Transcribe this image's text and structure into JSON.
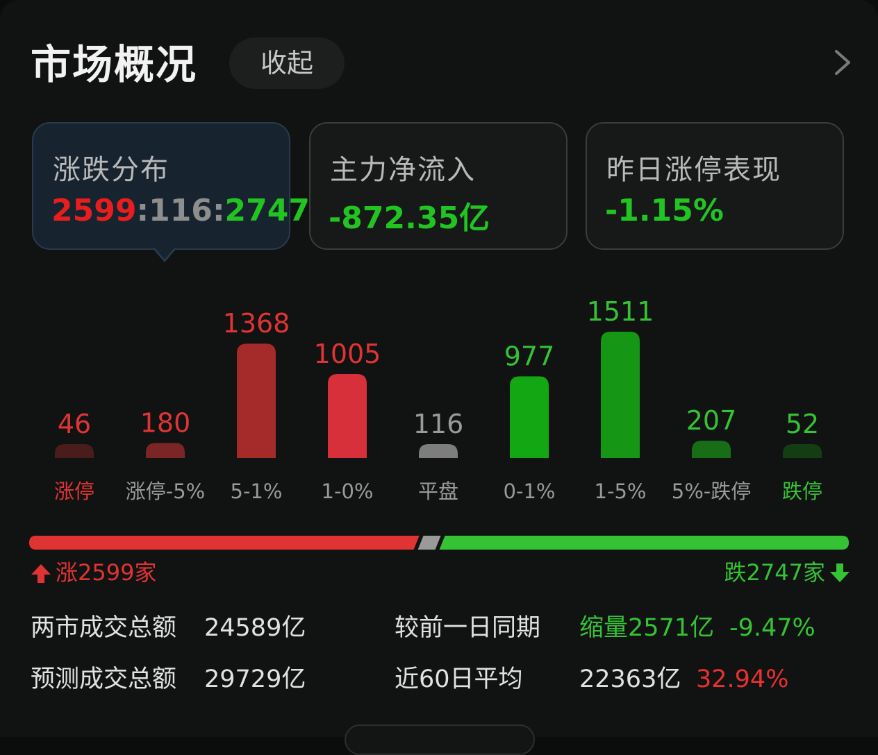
{
  "header": {
    "title": "市场概况",
    "collapse_label": "收起"
  },
  "cards": [
    {
      "title": "涨跌分布",
      "up": "2599",
      "flat": "116",
      "down": "2747"
    },
    {
      "title": "主力净流入",
      "value": "-872.35亿"
    },
    {
      "title": "昨日涨停表现",
      "value": "-1.15%"
    }
  ],
  "colors": {
    "up": "#e03434",
    "down": "#35c235",
    "flat": "#9a9a9a"
  },
  "chart_data": {
    "type": "bar",
    "categories": [
      "涨停",
      "涨停-5%",
      "5-1%",
      "1-0%",
      "平盘",
      "0-1%",
      "1-5%",
      "5%-跌停",
      "跌停"
    ],
    "values": [
      46,
      180,
      1368,
      1005,
      116,
      977,
      1511,
      207,
      52
    ],
    "bar_colors": [
      "#4a1c1c",
      "#7a2626",
      "#a52a2a",
      "#d8303a",
      "#7d7d7d",
      "#13a813",
      "#159615",
      "#176e17",
      "#143d14"
    ],
    "label_colors": [
      "#e03434",
      "#e03434",
      "#e03434",
      "#e03434",
      "#9a9a9a",
      "#35c235",
      "#35c235",
      "#35c235",
      "#35c235"
    ],
    "category_colors": [
      "#e03434",
      "#9a9a9a",
      "#9a9a9a",
      "#9a9a9a",
      "#9a9a9a",
      "#9a9a9a",
      "#9a9a9a",
      "#9a9a9a",
      "#35c235"
    ]
  },
  "breadth": {
    "up_share": 0.4759,
    "flat_share": 0.0212,
    "down_share": 0.5029,
    "up_text": "涨2599家",
    "down_text": "跌2747家"
  },
  "stats": {
    "total_label": "两市成交总额",
    "total_value": "24589亿",
    "compare_label": "较前一日同期",
    "compare_value": "缩量2571亿",
    "compare_pct": "-9.47%",
    "forecast_label": "预测成交总额",
    "forecast_value": "29729亿",
    "avg_label": "近60日平均",
    "avg_value": "22363亿",
    "avg_pct": "32.94%"
  }
}
